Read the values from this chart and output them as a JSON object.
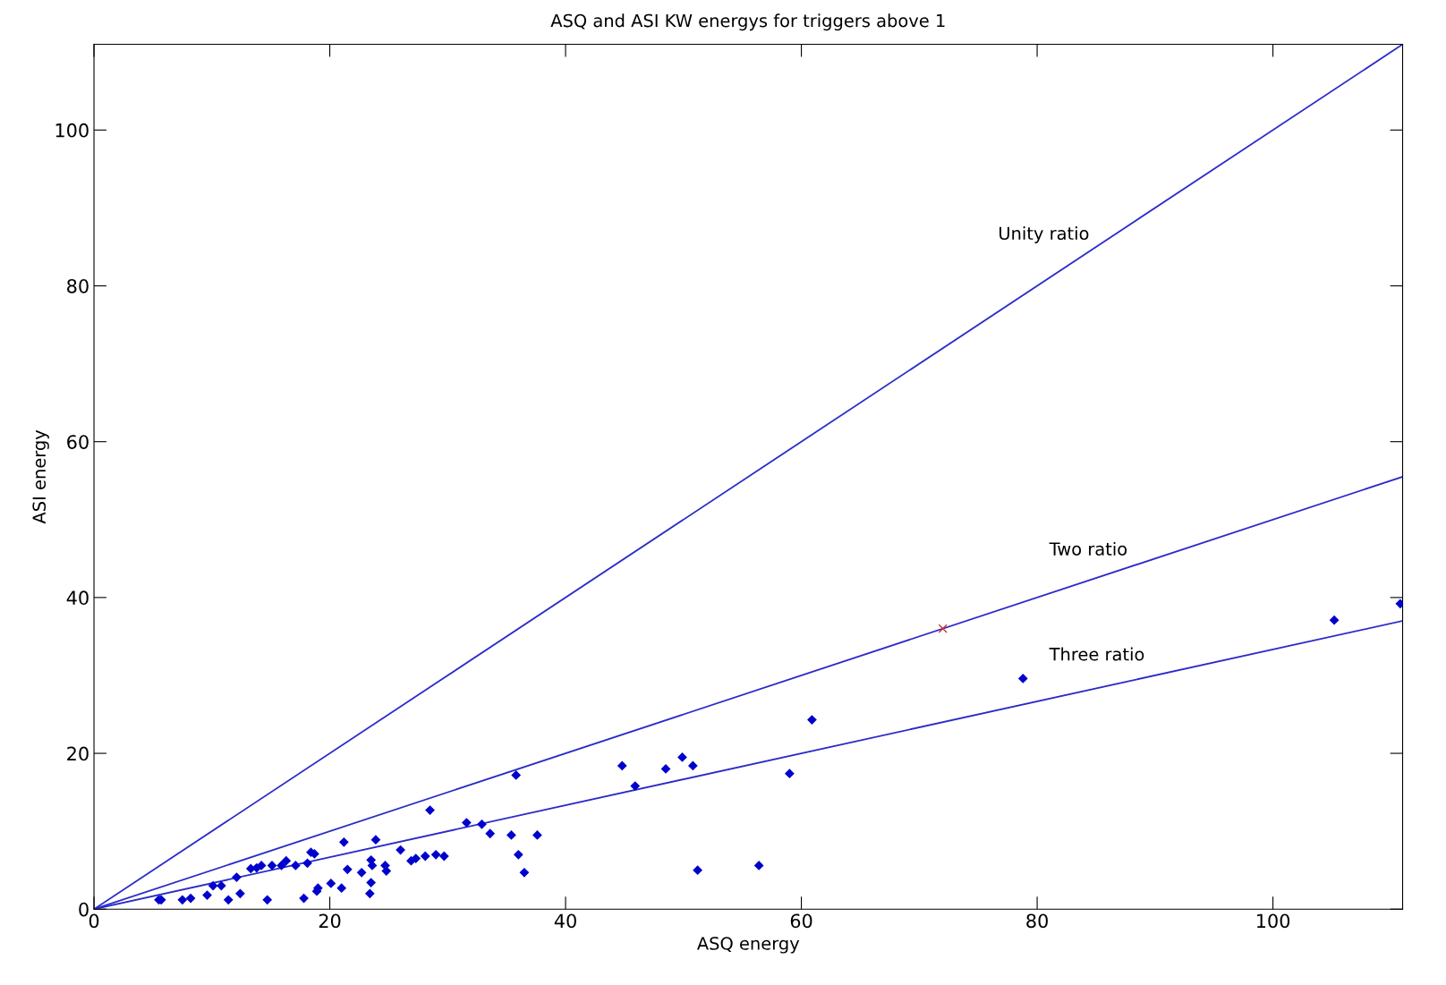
{
  "chart_data": {
    "type": "scatter",
    "title": "ASQ and ASI KW energys for triggers above 1",
    "xlabel": "ASQ energy",
    "ylabel": "ASI energy",
    "xlim": [
      0,
      111
    ],
    "ylim": [
      0,
      111
    ],
    "xticks": [
      0,
      20,
      40,
      60,
      80,
      100
    ],
    "yticks": [
      0,
      20,
      40,
      60,
      80,
      100
    ],
    "grid": false,
    "legend": false,
    "series": [
      {
        "type": "line",
        "name": "Unity ratio",
        "color": "#2b2bc8",
        "marker": "none",
        "x": [
          0,
          111
        ],
        "values": [
          0,
          111
        ]
      },
      {
        "type": "line",
        "name": "Two ratio",
        "color": "#2b2bc8",
        "marker": "none",
        "x": [
          0,
          111
        ],
        "values": [
          0,
          55.5
        ]
      },
      {
        "type": "line",
        "name": "Three ratio",
        "color": "#2b2bc8",
        "marker": "none",
        "x": [
          0,
          111
        ],
        "values": [
          0,
          37
        ]
      },
      {
        "color": "#cc3333",
        "marker": "cross",
        "x": [
          72
        ],
        "values": [
          36
        ]
      },
      {
        "color": "#0000cc",
        "marker": "diamond",
        "x": [
          5.5,
          5.7,
          7.5,
          8.2,
          9.6,
          10.1,
          10.8,
          11.4,
          12.1,
          12.4,
          13.3,
          13.8,
          14.2,
          14.7,
          15.1,
          15.9,
          16.3,
          17.1,
          17.8,
          18.1,
          18.4,
          18.7,
          19.0,
          18.9,
          20.1,
          21.0,
          21.2,
          21.5,
          22.7,
          23.4,
          23.5,
          23.5,
          23.6,
          23.9,
          24.7,
          24.8,
          26.0,
          26.9,
          27.3,
          28.1,
          28.5,
          29.0,
          29.7,
          31.6,
          32.9,
          33.6,
          35.4,
          35.8,
          36.0,
          36.5,
          37.6,
          44.8,
          45.9,
          48.5,
          49.9,
          50.8,
          51.2,
          56.4,
          59.0,
          60.9,
          78.8,
          105.2,
          110.8
        ],
        "values": [
          1.2,
          1.2,
          1.2,
          1.4,
          1.8,
          3.0,
          3.0,
          1.2,
          4.1,
          2.0,
          5.2,
          5.3,
          5.6,
          1.2,
          5.6,
          5.6,
          6.2,
          5.6,
          1.4,
          5.9,
          7.3,
          7.1,
          2.7,
          2.3,
          3.3,
          2.7,
          8.6,
          5.1,
          4.7,
          2.0,
          3.4,
          6.3,
          5.6,
          8.9,
          5.6,
          4.9,
          7.6,
          6.2,
          6.5,
          6.8,
          12.7,
          7.0,
          6.8,
          11.1,
          10.9,
          9.7,
          9.5,
          17.2,
          7.0,
          4.7,
          9.5,
          18.4,
          15.8,
          18.0,
          19.5,
          18.4,
          5.0,
          5.6,
          17.4,
          24.3,
          29.6,
          37.1,
          39.2
        ]
      }
    ]
  }
}
